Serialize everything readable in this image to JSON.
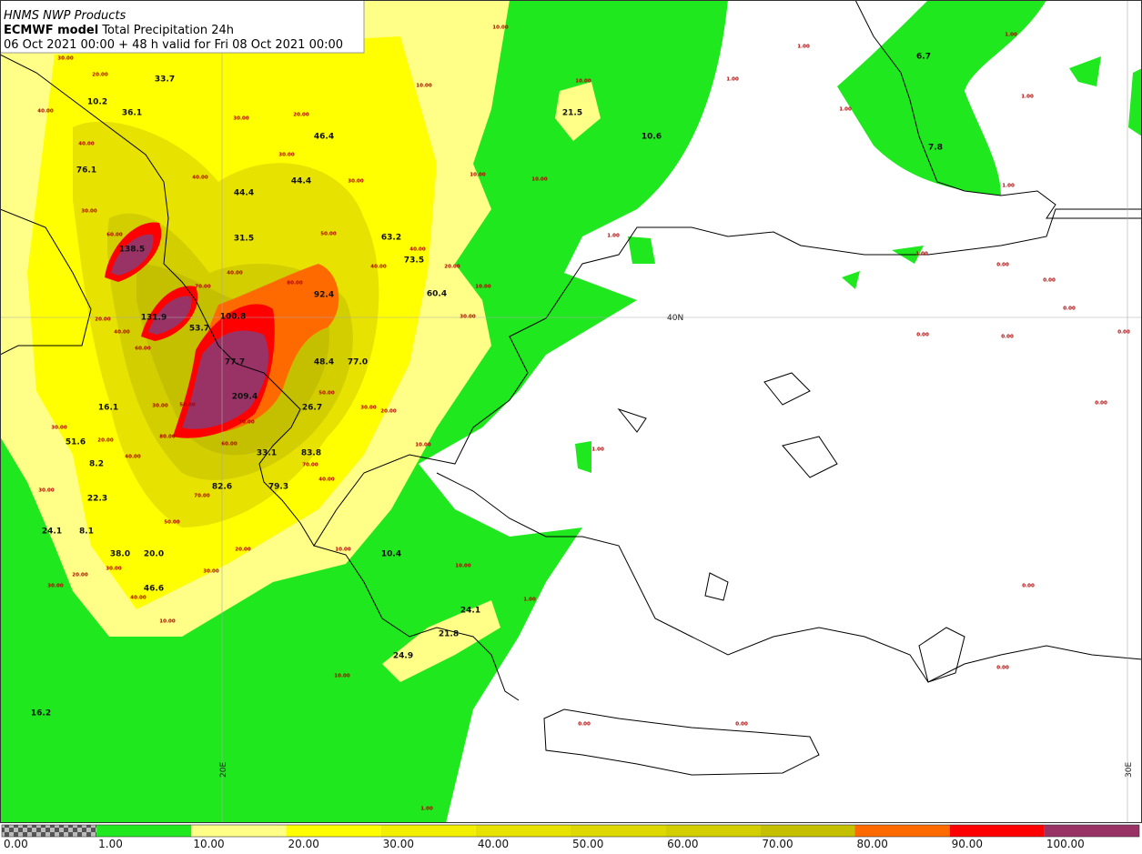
{
  "header": {
    "line1": "HNMS NWP Products",
    "model": "ECMWF model",
    "product": "Total Precipitation 24h",
    "valid": "06 Oct 2021 00:00 + 48 h valid for Fri 08 Oct 2021 00:00"
  },
  "map": {
    "maxima": [
      "33.7",
      "10.2",
      "36.1",
      "46.4",
      "76.1",
      "44.4",
      "44.4",
      "31.5",
      "63.2",
      "73.5",
      "138.5",
      "92.4",
      "60.4",
      "131.9",
      "100.8",
      "53.7",
      "77.7",
      "48.4",
      "77.0",
      "209.4",
      "26.7",
      "16.1",
      "51.6",
      "8.2",
      "33.1",
      "83.8",
      "82.6",
      "79.3",
      "22.3",
      "24.1",
      "8.1",
      "38.0",
      "20.0",
      "10.4",
      "46.6",
      "24.1",
      "21.8",
      "24.9",
      "16.2",
      "21.5",
      "10.6",
      "6.7",
      "7.8"
    ],
    "contour_labels": [
      "30.00",
      "20.00",
      "40.00",
      "30.00",
      "20.00",
      "40.00",
      "30.00",
      "40.00",
      "30.00",
      "30.00",
      "60.00",
      "50.00",
      "40.00",
      "40.00",
      "20.00",
      "40.00",
      "80.00",
      "70.00",
      "20.00",
      "40.00",
      "60.00",
      "30.00",
      "10.00",
      "10.00",
      "10.00",
      "10.00",
      "10.00",
      "10.00",
      "1.00",
      "1.00",
      "1.00",
      "1.00",
      "1.00",
      "1.00",
      "1.00",
      "1.00",
      "0.00",
      "0.00",
      "0.00",
      "0.00",
      "0.00",
      "0.00",
      "0.00",
      "30.00",
      "50.00",
      "30.00",
      "20.00",
      "50.00",
      "70.00",
      "30.00",
      "20.00",
      "80.00",
      "40.00",
      "60.00",
      "10.00",
      "1.00",
      "70.00",
      "40.00",
      "30.00",
      "70.00",
      "50.00",
      "20.00",
      "10.00",
      "30.00",
      "20.00",
      "30.00",
      "30.00",
      "40.00",
      "10.00",
      "1.00",
      "0.00",
      "0.00",
      "0.00",
      "0.00",
      "10.00",
      "1.00",
      "10.00"
    ],
    "grid_labels": [
      "40N",
      "20E",
      "30E"
    ]
  },
  "legend": {
    "labels": [
      "0.00",
      "1.00",
      "10.00",
      "20.00",
      "30.00",
      "40.00",
      "50.00",
      "60.00",
      "70.00",
      "80.00",
      "90.00",
      "100.00"
    ],
    "colors": [
      "#1fe81f",
      "#ffff88",
      "#ffff00",
      "#f2ef00",
      "#e8e200",
      "#dcd800",
      "#d2ce00",
      "#c4c000",
      "#ff6a00",
      "#ff0000",
      "#993366"
    ]
  }
}
